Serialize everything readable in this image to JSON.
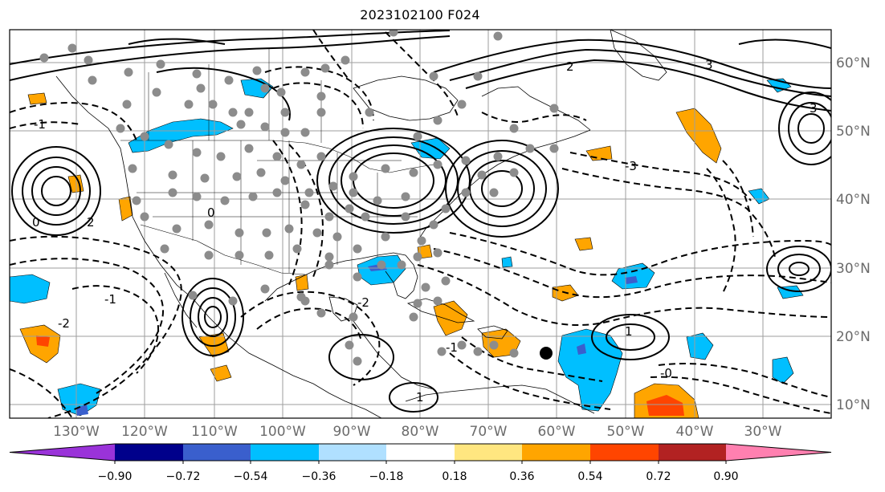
{
  "title": "2023102100 F024",
  "map": {
    "lon_labels": [
      "130°W",
      "120°W",
      "110°W",
      "100°W",
      "90°W",
      "80°W",
      "70°W",
      "60°W",
      "50°W",
      "40°W",
      "30°W"
    ],
    "lat_labels": [
      "60°N",
      "50°N",
      "40°N",
      "30°N",
      "20°N",
      "10°N"
    ],
    "contour_labels": [
      "-1",
      "-2",
      "0",
      "2",
      "3",
      "-1",
      "-2",
      "0",
      "1",
      "2",
      "3",
      "-3",
      "-0",
      "1",
      "-1"
    ],
    "colors": {
      "land_border": "#000000",
      "grid": "#9e9e9e",
      "station": "#8c8c8c",
      "marker": "#000000"
    }
  },
  "colorbar": {
    "tick_labels": [
      "−0.90",
      "−0.72",
      "−0.54",
      "−0.36",
      "−0.18",
      "0.18",
      "0.36",
      "0.54",
      "0.72",
      "0.90"
    ],
    "colors": [
      "#9a33d9",
      "#00008b",
      "#3a5fcd",
      "#00bfff",
      "#b0e0ff",
      "#ffffff",
      "#ffe680",
      "#ffa500",
      "#ff4500",
      "#b22222",
      "#ff80b0"
    ]
  }
}
